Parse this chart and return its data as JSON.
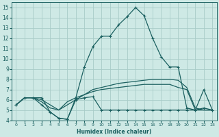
{
  "xlabel": "Humidex (Indice chaleur)",
  "xlim": [
    -0.5,
    23.5
  ],
  "ylim": [
    4,
    15.5
  ],
  "yticks": [
    4,
    5,
    6,
    7,
    8,
    9,
    10,
    11,
    12,
    13,
    14,
    15
  ],
  "xticks": [
    0,
    1,
    2,
    3,
    4,
    5,
    6,
    7,
    8,
    9,
    10,
    11,
    12,
    13,
    14,
    15,
    16,
    17,
    18,
    19,
    20,
    21,
    22,
    23
  ],
  "bg_color": "#cee9e5",
  "grid_color": "#a8ccc8",
  "line_color": "#1b6060",
  "line1_x": [
    0,
    1,
    2,
    3,
    4,
    5,
    6,
    7,
    8,
    9,
    10,
    11,
    12,
    13,
    14,
    15,
    16,
    17,
    18,
    19,
    20,
    21,
    22,
    23
  ],
  "line1_y": [
    5.5,
    6.2,
    6.2,
    6.2,
    4.8,
    4.2,
    4.1,
    6.2,
    9.2,
    11.2,
    12.2,
    12.2,
    13.3,
    14.1,
    15.0,
    14.2,
    12.0,
    10.2,
    9.2,
    9.2,
    5.2,
    5.0,
    7.0,
    5.0
  ],
  "line2_x": [
    0,
    1,
    2,
    3,
    4,
    5,
    6,
    7,
    8,
    9,
    10,
    11,
    12,
    13,
    14,
    15,
    16,
    17,
    18,
    19,
    20,
    21,
    22,
    23
  ],
  "line2_y": [
    5.5,
    6.2,
    6.2,
    6.0,
    5.5,
    5.0,
    5.5,
    6.0,
    6.5,
    7.0,
    7.2,
    7.4,
    7.6,
    7.7,
    7.8,
    7.9,
    8.0,
    8.0,
    8.0,
    7.9,
    7.2,
    5.2,
    5.0,
    5.0
  ],
  "line3_x": [
    0,
    1,
    2,
    3,
    4,
    5,
    6,
    7,
    8,
    9,
    10,
    11,
    12,
    13,
    14,
    15,
    16,
    17,
    18,
    19,
    20,
    21,
    22,
    23
  ],
  "line3_y": [
    5.5,
    6.2,
    6.2,
    5.8,
    5.2,
    5.0,
    5.8,
    6.2,
    6.5,
    6.8,
    7.0,
    7.1,
    7.2,
    7.3,
    7.4,
    7.5,
    7.5,
    7.5,
    7.5,
    7.2,
    7.0,
    5.0,
    5.0,
    5.0
  ],
  "line4_x": [
    0,
    1,
    2,
    3,
    4,
    5,
    6,
    7,
    8,
    9,
    10,
    11,
    12,
    13,
    14,
    15,
    16,
    17,
    18,
    19,
    20,
    21,
    22,
    23
  ],
  "line4_y": [
    5.5,
    6.2,
    6.2,
    5.5,
    4.8,
    4.2,
    4.1,
    6.0,
    6.2,
    6.3,
    5.0,
    5.0,
    5.0,
    5.0,
    5.0,
    5.0,
    5.0,
    5.0,
    5.0,
    5.0,
    5.0,
    5.0,
    5.2,
    5.0
  ]
}
